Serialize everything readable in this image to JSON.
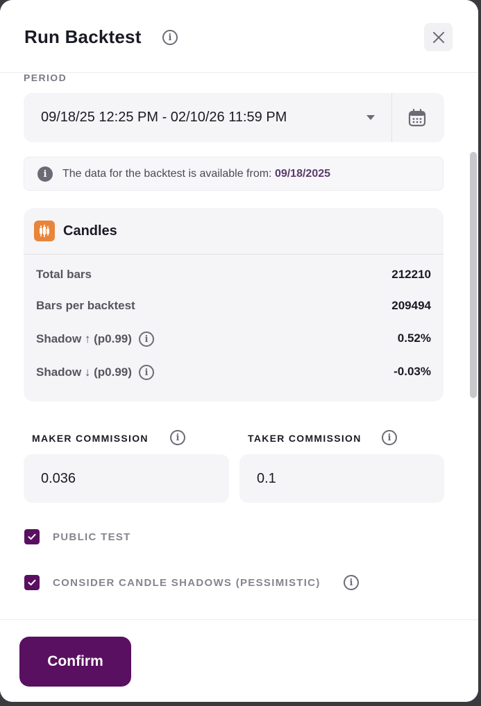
{
  "dialog": {
    "title": "Run Backtest",
    "close_icon": "close-icon"
  },
  "period": {
    "label": "PERIOD",
    "value": "09/18/25 12:25 PM - 02/10/26 11:59 PM",
    "calendar_icon": "calendar-icon"
  },
  "notice": {
    "text": "The data for the backtest is available from: ",
    "date": "09/18/2025"
  },
  "candles": {
    "title": "Candles",
    "stats": [
      {
        "label": "Total bars",
        "value": "212210"
      },
      {
        "label": "Bars per backtest",
        "value": "209494"
      },
      {
        "label": "Shadow ↑ (p0.99)",
        "value": "0.52%"
      },
      {
        "label": "Shadow ↓ (p0.99)",
        "value": "-0.03%"
      }
    ]
  },
  "commission": {
    "maker_label": "MAKER COMMISSION",
    "maker_value": "0.036",
    "taker_label": "TAKER COMMISSION",
    "taker_value": "0.1"
  },
  "options": {
    "public_test_label": "PUBLIC TEST",
    "public_test_checked": true,
    "candle_shadows_label": "CONSIDER CANDLE SHADOWS (PESSIMISTIC)",
    "candle_shadows_checked": true
  },
  "footer": {
    "confirm_label": "Confirm"
  },
  "colors": {
    "accent": "#5a1060",
    "candles_logo": "#e8853a"
  }
}
